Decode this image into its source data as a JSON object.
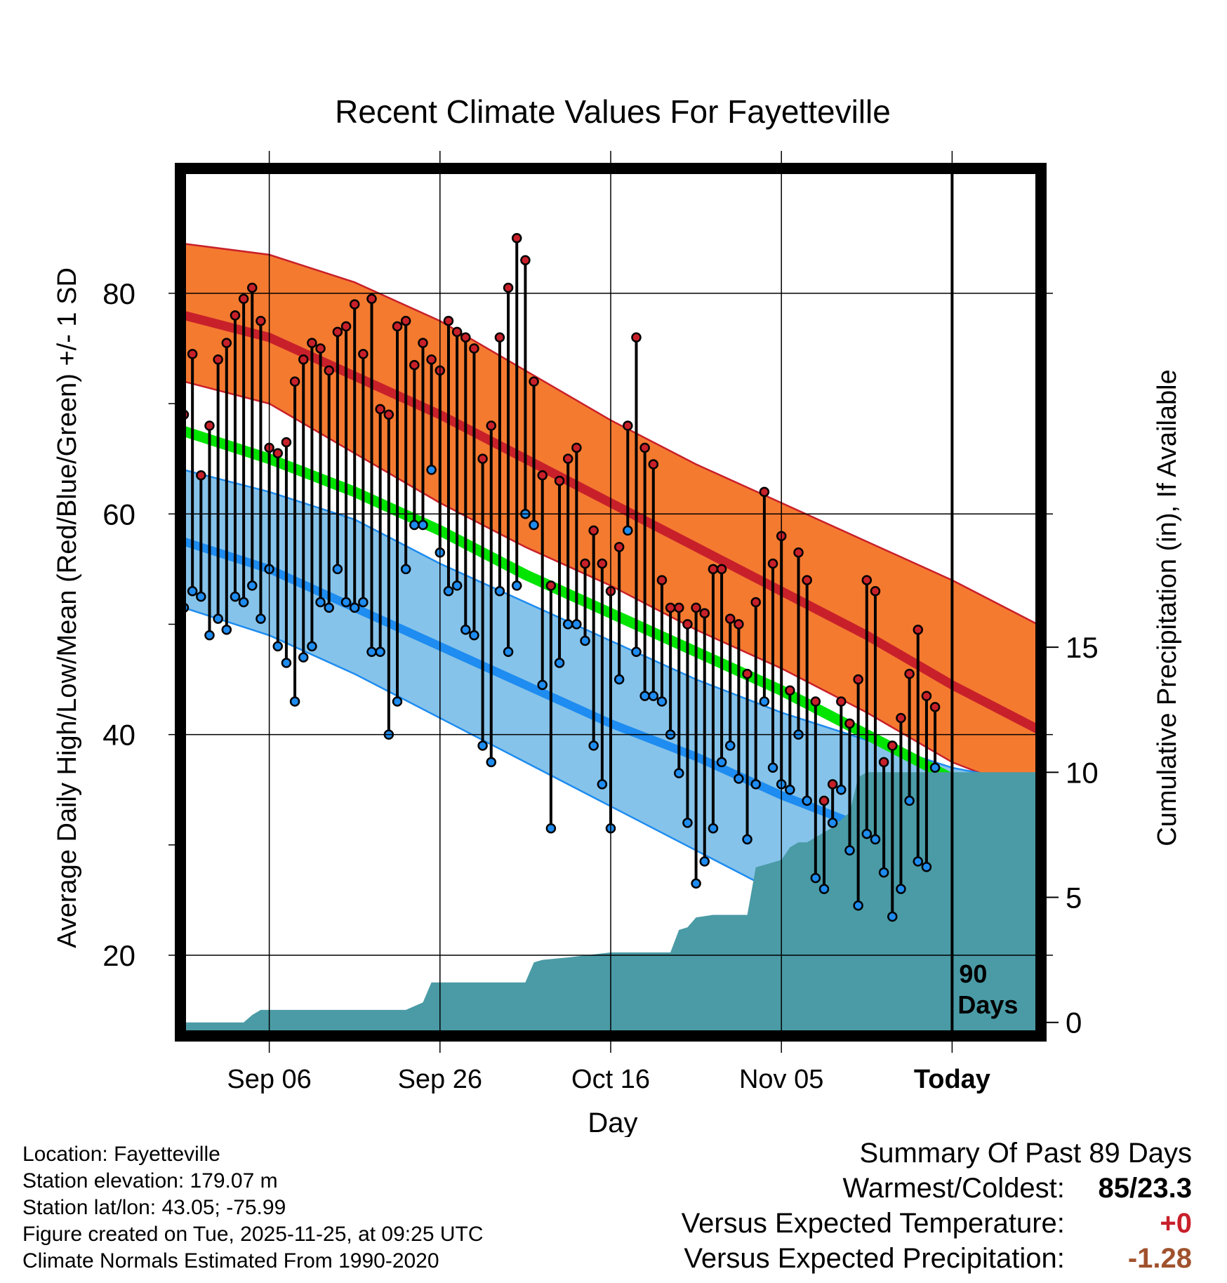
{
  "colors": {
    "orange_band": "#F47A30",
    "red_mean": "#C8202A",
    "dark_red": "#8B0D14",
    "green_mean": "#00E400",
    "blue_band": "#86C3EA",
    "blue_mean": "#1E8CF0",
    "precip": "#4A9BA6",
    "temp_diff": "#C8202A",
    "precip_diff": "#A0522D"
  },
  "chart_data": {
    "type": "line",
    "title": "Recent Climate Values For Fayetteville",
    "xlabel": "Day",
    "ylabel": "Average Daily High/Low/Mean (Red/Blue/Green) +/- 1 SD",
    "y2label": "Cumulative Precipitation (in), If Available",
    "x_tick_labels": [
      "Sep 06",
      "Sep 26",
      "Oct 16",
      "Nov 05",
      "Today"
    ],
    "x_tick_days": [
      10,
      30,
      50,
      70,
      90
    ],
    "xlim": [
      0,
      100
    ],
    "ylim": [
      13,
      91
    ],
    "yticks": [
      20,
      40,
      60,
      80
    ],
    "y2lim": [
      -0.4,
      34
    ],
    "y2ticks": [
      0,
      5,
      10,
      15
    ],
    "today_marker": {
      "day": 90,
      "label_line1": "90",
      "label_line2": "Days"
    },
    "normals_days": [
      0,
      10,
      20,
      30,
      40,
      50,
      60,
      70,
      80,
      90,
      100
    ],
    "normal_high": [
      78,
      76,
      72.5,
      69,
      65,
      61,
      57,
      53,
      49,
      44.5,
      40.5
    ],
    "normal_high_sd_upper": [
      84.5,
      83.5,
      81,
      77.5,
      73,
      68.5,
      64.5,
      61,
      57.5,
      54,
      50
    ],
    "normal_high_sd_lower": [
      72,
      70,
      65.5,
      61,
      57,
      53.5,
      49.5,
      46,
      42,
      37.5,
      34.5
    ],
    "normal_low": [
      57.5,
      55,
      51.5,
      48,
      44.5,
      41,
      38,
      34.5,
      31.5,
      29,
      28
    ],
    "normal_low_sd_upper": [
      64,
      62,
      59.5,
      55.5,
      52,
      48.5,
      45,
      42,
      39.5,
      37,
      35.5
    ],
    "normal_low_sd_lower": [
      51.5,
      49,
      45.5,
      41.5,
      37.5,
      33.5,
      29.5,
      25.5,
      22,
      18,
      17
    ],
    "normal_mean": [
      67.5,
      65,
      62,
      58.5,
      54.5,
      51,
      47.5,
      44,
      40,
      36,
      32.5
    ],
    "observed_days": [
      0,
      1,
      2,
      3,
      4,
      5,
      6,
      7,
      8,
      9,
      10,
      11,
      12,
      13,
      14,
      15,
      16,
      17,
      18,
      19,
      20,
      21,
      22,
      23,
      24,
      25,
      26,
      27,
      28,
      29,
      30,
      31,
      32,
      33,
      34,
      35,
      36,
      37,
      38,
      39,
      40,
      41,
      42,
      43,
      44,
      45,
      46,
      47,
      48,
      49,
      50,
      51,
      52,
      53,
      54,
      55,
      56,
      57,
      58,
      59,
      60,
      61,
      62,
      63,
      64,
      65,
      66,
      67,
      68,
      69,
      70,
      71,
      72,
      73,
      74,
      75,
      76,
      77,
      78,
      79,
      80,
      81,
      82,
      83,
      84,
      85,
      86,
      87,
      88
    ],
    "observed_high": [
      69,
      74.5,
      63.5,
      68,
      74,
      75.5,
      78,
      79.5,
      80.5,
      77.5,
      66,
      65.5,
      66.5,
      72,
      74,
      75.5,
      75,
      73,
      76.5,
      77,
      79,
      74.5,
      79.5,
      69.5,
      69,
      77,
      77.5,
      73.5,
      75.5,
      74,
      73,
      77.5,
      76.5,
      76,
      75,
      65,
      68,
      76,
      80.5,
      85,
      83,
      72,
      63.5,
      53.5,
      63,
      65,
      66,
      55.5,
      58.5,
      55.5,
      53,
      57,
      68,
      76,
      66,
      64.5,
      54,
      51.5,
      51.5,
      50,
      51.5,
      51,
      55,
      55,
      50.5,
      50,
      45.5,
      52,
      62,
      55.5,
      58,
      44,
      56.5,
      54,
      43,
      34,
      35.5,
      43,
      41,
      45,
      54,
      53,
      37.5,
      39,
      41.5,
      45.5,
      49.5,
      43.5,
      42.5
    ],
    "observed_low": [
      51.5,
      53,
      52.5,
      49,
      50.5,
      49.5,
      52.5,
      52,
      53.5,
      50.5,
      55,
      48,
      46.5,
      43,
      47,
      48,
      52,
      51.5,
      55,
      52,
      51.5,
      52,
      47.5,
      47.5,
      40,
      43,
      55,
      59,
      59,
      64,
      56.5,
      53,
      53.5,
      49.5,
      49,
      39,
      37.5,
      53,
      47.5,
      53.5,
      60,
      59,
      44.5,
      31.5,
      46.5,
      50,
      50,
      48.5,
      39,
      35.5,
      31.5,
      45,
      58.5,
      47.5,
      43.5,
      43.5,
      43,
      40,
      36.5,
      32,
      26.5,
      28.5,
      31.5,
      37.5,
      39,
      36,
      30.5,
      35.5,
      43,
      37,
      35.5,
      35,
      40,
      34,
      27,
      26,
      32,
      35,
      29.5,
      24.5,
      31,
      30.5,
      27.5,
      23.5,
      26,
      34,
      28.5,
      28,
      37
    ],
    "precip_days": [
      0,
      7,
      8,
      9,
      10,
      26,
      28,
      29,
      30,
      40,
      41,
      42,
      45,
      50,
      52,
      53,
      54,
      57,
      58,
      59,
      60,
      62,
      63,
      64,
      65,
      66,
      67,
      68,
      69,
      70,
      71,
      72,
      73,
      74,
      75,
      76,
      77,
      78,
      79,
      80,
      81,
      82,
      90,
      100
    ],
    "precip_cum": [
      0,
      0,
      0.3,
      0.5,
      0.5,
      0.5,
      0.8,
      1.6,
      1.6,
      1.6,
      2.4,
      2.5,
      2.6,
      2.8,
      2.8,
      2.8,
      2.8,
      2.8,
      3.7,
      3.8,
      4.2,
      4.3,
      4.3,
      4.3,
      4.3,
      4.3,
      6.2,
      6.3,
      6.4,
      6.5,
      7,
      7.2,
      7.2,
      7.4,
      7.6,
      7.8,
      8.1,
      8.4,
      9.8,
      10,
      10,
      10,
      10,
      10
    ]
  },
  "footer": {
    "location": "Location: Fayetteville",
    "elevation": "Station elevation: 179.07 m",
    "latlon": "Station lat/lon: 43.05; -75.99",
    "created": "Figure created on Tue, 2025-11-25, at 09:25 UTC",
    "normals": "Climate Normals Estimated From 1990-2020"
  },
  "summary": {
    "title": "Summary Of Past 89 Days",
    "warmest_label": "Warmest/Coldest:",
    "warmest_value": "85/23.3",
    "temp_label": "Versus Expected Temperature:",
    "temp_value": "+0",
    "precip_label": "Versus Expected Precipitation:",
    "precip_value": "-1.28"
  }
}
